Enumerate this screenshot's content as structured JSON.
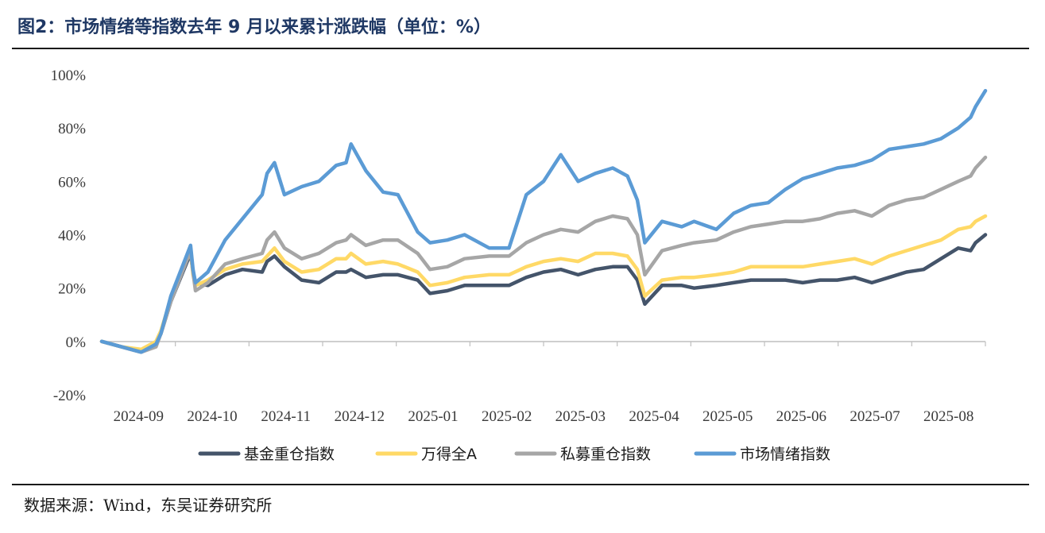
{
  "figure": {
    "title": "图2：市场情绪等指数去年 9 月以来累计涨跌幅（单位：%）",
    "source": "数据来源：Wind，东吴证券研究所"
  },
  "chart_data": {
    "type": "line",
    "title": "",
    "xlabel": "",
    "ylabel": "",
    "ylim": [
      -20,
      100
    ],
    "y_ticks": [
      "100%",
      "80%",
      "60%",
      "40%",
      "20%",
      "0%",
      "-20%"
    ],
    "x_ticks": [
      "2024-09",
      "2024-10",
      "2024-11",
      "2024-12",
      "2025-01",
      "2025-02",
      "2025-03",
      "2025-04",
      "2025-05",
      "2025-06",
      "2025-07",
      "2025-08"
    ],
    "grid": false,
    "legend_position": "bottom",
    "x": [
      "2024-09-02",
      "2024-09-10",
      "2024-09-18",
      "2024-09-24",
      "2024-09-26",
      "2024-09-30",
      "2024-10-08",
      "2024-10-09",
      "2024-10-10",
      "2024-10-15",
      "2024-10-22",
      "2024-10-29",
      "2024-11-06",
      "2024-11-08",
      "2024-11-11",
      "2024-11-15",
      "2024-11-22",
      "2024-11-29",
      "2024-12-06",
      "2024-12-10",
      "2024-12-12",
      "2024-12-18",
      "2024-12-25",
      "2024-12-31",
      "2025-01-08",
      "2025-01-13",
      "2025-01-20",
      "2025-01-27",
      "2025-02-06",
      "2025-02-14",
      "2025-02-21",
      "2025-02-28",
      "2025-03-07",
      "2025-03-14",
      "2025-03-21",
      "2025-03-28",
      "2025-04-03",
      "2025-04-07",
      "2025-04-10",
      "2025-04-17",
      "2025-04-25",
      "2025-04-30",
      "2025-05-09",
      "2025-05-16",
      "2025-05-23",
      "2025-05-30",
      "2025-06-06",
      "2025-06-13",
      "2025-06-20",
      "2025-06-27",
      "2025-07-04",
      "2025-07-11",
      "2025-07-18",
      "2025-07-25",
      "2025-08-01",
      "2025-08-08",
      "2025-08-15",
      "2025-08-20",
      "2025-08-22",
      "2025-08-26"
    ],
    "series": [
      {
        "name": "基金重仓指数",
        "color": "#44546a",
        "values": [
          0,
          -2,
          -4,
          -1,
          3,
          15,
          33,
          26,
          22,
          21,
          25,
          27,
          26,
          30,
          32,
          28,
          23,
          22,
          26,
          26,
          27,
          24,
          25,
          25,
          23,
          18,
          19,
          21,
          21,
          21,
          24,
          26,
          27,
          25,
          27,
          28,
          28,
          23,
          14,
          21,
          21,
          20,
          21,
          22,
          23,
          23,
          23,
          22,
          23,
          23,
          24,
          22,
          24,
          26,
          27,
          31,
          35,
          34,
          37,
          40
        ]
      },
      {
        "name": "万得全A",
        "color": "#ffd966",
        "values": [
          0,
          -2,
          -3,
          0,
          4,
          16,
          34,
          25,
          21,
          23,
          27,
          29,
          30,
          32,
          35,
          30,
          26,
          27,
          31,
          31,
          33,
          29,
          30,
          29,
          26,
          21,
          22,
          24,
          25,
          25,
          28,
          30,
          31,
          30,
          33,
          33,
          32,
          27,
          17,
          23,
          24,
          24,
          25,
          26,
          28,
          28,
          28,
          28,
          29,
          30,
          31,
          29,
          32,
          34,
          36,
          38,
          42,
          43,
          45,
          47
        ]
      },
      {
        "name": "私募重仓指数",
        "color": "#a6a6a6",
        "values": [
          0,
          -2,
          -4,
          -2,
          3,
          15,
          34,
          26,
          19,
          22,
          29,
          31,
          33,
          38,
          41,
          35,
          31,
          33,
          37,
          38,
          40,
          36,
          38,
          38,
          33,
          27,
          28,
          31,
          32,
          32,
          37,
          40,
          42,
          41,
          45,
          47,
          46,
          40,
          25,
          34,
          36,
          37,
          38,
          41,
          43,
          44,
          45,
          45,
          46,
          48,
          49,
          47,
          51,
          53,
          54,
          57,
          60,
          62,
          65,
          69
        ]
      },
      {
        "name": "市场情绪指数",
        "color": "#5b9bd5",
        "values": [
          0,
          -2,
          -4,
          -1,
          3,
          17,
          36,
          27,
          22,
          26,
          38,
          46,
          55,
          63,
          67,
          55,
          58,
          60,
          66,
          67,
          74,
          64,
          56,
          55,
          41,
          37,
          38,
          40,
          35,
          35,
          55,
          60,
          70,
          60,
          63,
          65,
          62,
          53,
          37,
          45,
          43,
          45,
          42,
          48,
          51,
          52,
          57,
          61,
          63,
          65,
          66,
          68,
          72,
          73,
          74,
          76,
          80,
          84,
          88,
          94
        ]
      }
    ]
  }
}
